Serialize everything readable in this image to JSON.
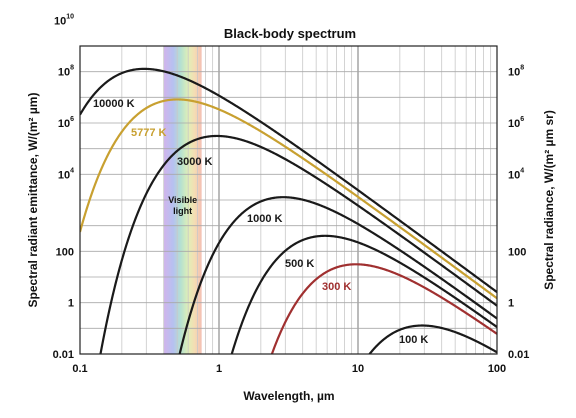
{
  "chart_data": {
    "type": "line",
    "title": "Black-body spectrum",
    "xlabel": "Wavelength, µm",
    "ylabel_left": "Spectral radiant emittance, W/(m² µm)",
    "ylabel_right": "Spectral radiance, W/(m² µm sr)",
    "x_scale": "log",
    "y_scale": "log",
    "xlim": [
      0.1,
      100
    ],
    "ylim": [
      0.01,
      10000000000
    ],
    "x_ticks": [
      "0.1",
      "1",
      "10",
      "100"
    ],
    "y_ticks_left": [
      {
        "base": "10",
        "exp": "10"
      },
      {
        "base": "10",
        "exp": "8"
      },
      {
        "base": "10",
        "exp": "6"
      },
      {
        "base": "10",
        "exp": "4"
      },
      {
        "base": "100",
        "exp": ""
      },
      {
        "base": "1",
        "exp": ""
      },
      {
        "base": "0.01",
        "exp": ""
      }
    ],
    "y_ticks_right": [
      {
        "base": "10",
        "exp": "8"
      },
      {
        "base": "10",
        "exp": "6"
      },
      {
        "base": "10",
        "exp": "4"
      },
      {
        "base": "100",
        "exp": ""
      },
      {
        "base": "1",
        "exp": ""
      },
      {
        "base": "0.01",
        "exp": ""
      }
    ],
    "grid": true,
    "annotation": {
      "line1": "Visible",
      "line2": "light",
      "band_um": [
        0.4,
        0.75
      ]
    },
    "series": [
      {
        "name": "10000 K",
        "temperature_K": 10000,
        "color": "#1a1a1a"
      },
      {
        "name": "5777 K",
        "temperature_K": 5777,
        "color": "#c8a030"
      },
      {
        "name": "3000 K",
        "temperature_K": 3000,
        "color": "#1a1a1a"
      },
      {
        "name": "1000 K",
        "temperature_K": 1000,
        "color": "#1a1a1a"
      },
      {
        "name": "500 K",
        "temperature_K": 500,
        "color": "#1a1a1a"
      },
      {
        "name": "300 K",
        "temperature_K": 300,
        "color": "#a03030"
      },
      {
        "name": "100 K",
        "temperature_K": 100,
        "color": "#1a1a1a"
      }
    ]
  }
}
